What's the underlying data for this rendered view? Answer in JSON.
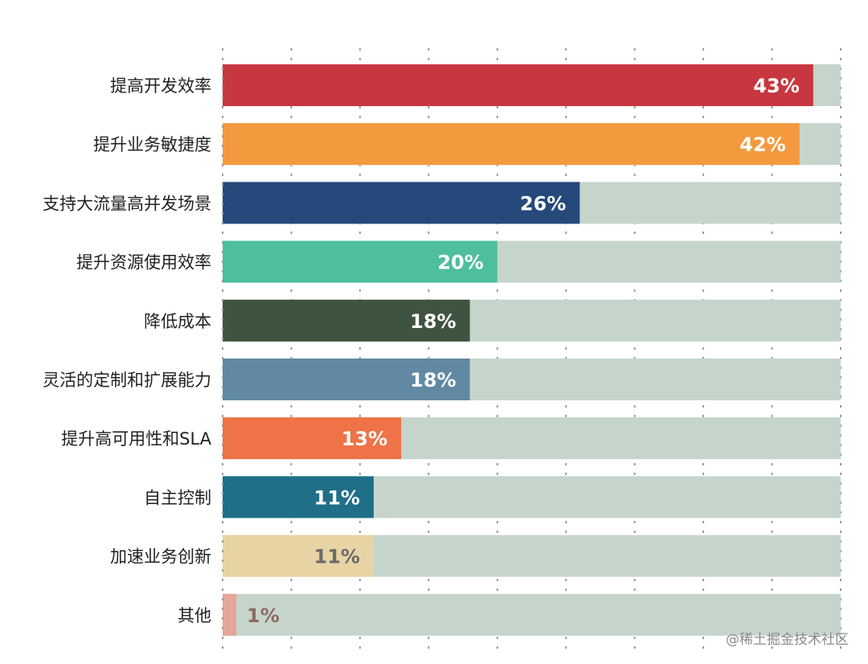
{
  "chart_data": {
    "type": "bar",
    "orientation": "horizontal",
    "categories": [
      "提高开发效率",
      "提升业务敏捷度",
      "支持大流量高并发场景",
      "提升资源使用效率",
      "降低成本",
      "灵活的定制和扩展能力",
      "提升高可用性和SLA",
      "自主控制",
      "加速业务创新",
      "其他"
    ],
    "values": [
      43,
      42,
      26,
      20,
      18,
      18,
      13,
      11,
      11,
      1
    ],
    "value_labels": [
      "43%",
      "42%",
      "26%",
      "20%",
      "18%",
      "18%",
      "13%",
      "11%",
      "11%",
      "1%"
    ],
    "colors": [
      "#c8373f",
      "#f39a3e",
      "#26497c",
      "#4dbf9c",
      "#3f5440",
      "#6189a3",
      "#ee7346",
      "#1f6f89",
      "#e8d3a4",
      "#e4a69a"
    ],
    "value_label_colors": [
      "#ffffff",
      "#ffffff",
      "#ffffff",
      "#ffffff",
      "#ffffff",
      "#ffffff",
      "#ffffff",
      "#ffffff",
      "#6b6b6b",
      "#8d6b62"
    ],
    "track_color": "#c6d5cc",
    "xlim": [
      0,
      45
    ],
    "grid": true,
    "title": "",
    "xlabel": "",
    "ylabel": ""
  },
  "watermark": "@稀土掘金技术社区"
}
